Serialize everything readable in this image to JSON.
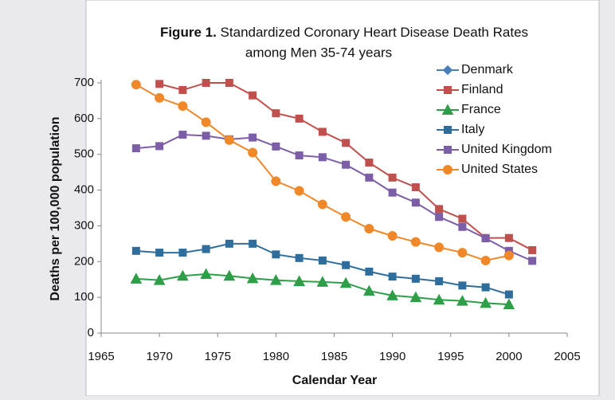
{
  "chart_data": {
    "type": "line",
    "figure_label": "Figure 1.",
    "title": [
      "Standardized Coronary Heart Disease Death Rates",
      "among Men 35-74 years"
    ],
    "x_label": "Calendar Year",
    "y_label": "Deaths per 100,000 population",
    "x": [
      1968,
      1970,
      1972,
      1974,
      1976,
      1978,
      1980,
      1982,
      1984,
      1986,
      1988,
      1990,
      1992,
      1994,
      1996,
      1998,
      2000,
      2002
    ],
    "xlim": [
      1965,
      2005
    ],
    "xticks": [
      1965,
      1970,
      1975,
      1980,
      1985,
      1990,
      1995,
      2000,
      2005
    ],
    "ylim": [
      0,
      700
    ],
    "yticks": [
      0,
      100,
      200,
      300,
      400,
      500,
      600,
      700
    ],
    "legend": "upper right",
    "series": [
      {
        "name": "Denmark",
        "color": "#4a7ebb",
        "marker": "diamond",
        "values": [
          null,
          null,
          null,
          null,
          null,
          null,
          null,
          null,
          null,
          null,
          null,
          null,
          null,
          null,
          null,
          null,
          null,
          null
        ]
      },
      {
        "name": "Finland",
        "color": "#c0504d",
        "marker": "square",
        "values": [
          null,
          697,
          680,
          700,
          700,
          665,
          615,
          600,
          563,
          532,
          477,
          435,
          408,
          347,
          320,
          266,
          266,
          232
        ]
      },
      {
        "name": "France",
        "color": "#2e9e48",
        "marker": "triangle",
        "values": [
          152,
          148,
          160,
          165,
          160,
          153,
          148,
          145,
          143,
          140,
          118,
          105,
          100,
          93,
          90,
          84,
          80,
          null
        ]
      },
      {
        "name": "Italy",
        "color": "#2f6e9c",
        "marker": "square",
        "values": [
          230,
          225,
          225,
          235,
          250,
          250,
          220,
          210,
          203,
          190,
          172,
          158,
          152,
          145,
          133,
          128,
          108,
          null
        ]
      },
      {
        "name": "United Kingdom",
        "color": "#7b5ea7",
        "marker": "square",
        "values": [
          517,
          523,
          555,
          552,
          542,
          547,
          522,
          497,
          492,
          471,
          435,
          393,
          365,
          325,
          297,
          265,
          230,
          202
        ]
      },
      {
        "name": "United States",
        "color": "#f0882a",
        "marker": "circle",
        "values": [
          695,
          658,
          635,
          590,
          540,
          505,
          425,
          398,
          360,
          325,
          292,
          272,
          255,
          240,
          225,
          203,
          217,
          null
        ]
      }
    ]
  }
}
